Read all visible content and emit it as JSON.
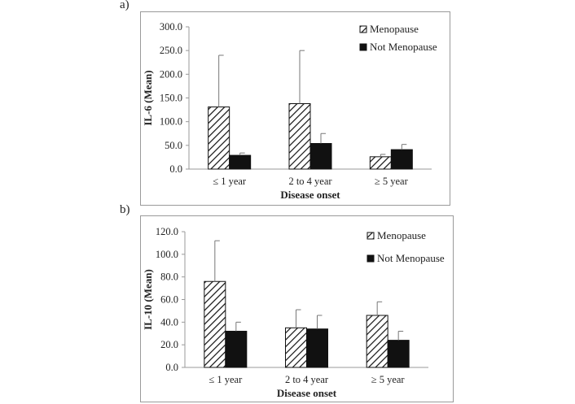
{
  "chart_data": [
    {
      "panel_label": "a)",
      "type": "bar",
      "categories": [
        "≤ 1 year",
        "2 to 4 year",
        "≥ 5 year"
      ],
      "series": [
        {
          "name": "Menopause",
          "values": [
            131,
            138,
            26
          ],
          "errors": [
            109,
            112,
            5
          ],
          "pattern": "hatch"
        },
        {
          "name": "Not Menopause",
          "values": [
            29,
            54,
            41
          ],
          "errors": [
            5,
            21,
            11
          ],
          "pattern": "solid"
        }
      ],
      "ylabel": "IL-6 (Mean)",
      "xlabel": "Disease onset",
      "ylim": [
        0,
        300
      ],
      "yticks": [
        "0.0",
        "50.0",
        "100.0",
        "150.0",
        "200.0",
        "250.0",
        "300.0"
      ],
      "legend_position": "top-right",
      "grid": false,
      "colors": {
        "bar": "#111111",
        "axis": "#999999",
        "text": "#222222"
      }
    },
    {
      "panel_label": "b)",
      "type": "bar",
      "categories": [
        "≤ 1 year",
        "2 to 4 year",
        "≥ 5 year"
      ],
      "series": [
        {
          "name": "Menopause",
          "values": [
            76,
            35,
            46
          ],
          "errors": [
            36,
            16,
            12
          ],
          "pattern": "hatch"
        },
        {
          "name": "Not Menopause",
          "values": [
            32,
            34,
            24
          ],
          "errors": [
            8,
            12,
            8
          ],
          "pattern": "solid"
        }
      ],
      "ylabel": "IL-10 (Mean)",
      "xlabel": "Disease onset",
      "ylim": [
        0,
        120
      ],
      "yticks": [
        "0.0",
        "20.0",
        "40.0",
        "60.0",
        "80.0",
        "100.0",
        "120.0"
      ],
      "legend_position": "top-right",
      "grid": false,
      "colors": {
        "bar": "#111111",
        "axis": "#999999",
        "text": "#222222"
      }
    }
  ]
}
